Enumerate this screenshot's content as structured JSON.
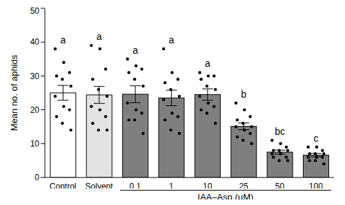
{
  "chart_data": {
    "type": "bar",
    "y_label": "Mean no. of aphids",
    "categories": [
      "Control",
      "Solvent",
      "0.1",
      "1",
      "10",
      "25",
      "50",
      "100"
    ],
    "values": [
      25.0,
      24.4,
      24.6,
      23.5,
      24.5,
      15.1,
      7.5,
      6.6
    ],
    "errors": [
      2.2,
      2.5,
      2.5,
      2.3,
      1.7,
      1.0,
      0.6,
      0.5
    ],
    "points": [
      [
        38,
        34,
        31,
        30,
        29,
        27,
        24,
        21,
        20,
        18,
        16,
        14
      ],
      [
        39,
        38,
        32,
        29,
        26,
        24,
        21,
        20,
        18,
        16,
        14,
        14
      ],
      [
        35,
        33,
        32,
        31,
        29,
        27,
        22,
        20,
        19,
        17,
        17,
        13
      ],
      [
        38,
        31,
        29,
        28,
        26,
        24,
        23,
        19,
        18,
        17,
        14,
        13
      ],
      [
        31,
        30,
        30,
        29,
        27,
        26,
        24,
        22,
        21,
        20,
        19,
        16
      ],
      [
        22,
        20,
        18,
        17,
        16,
        15,
        15,
        14,
        13,
        12,
        11,
        10
      ],
      [
        11,
        10,
        9,
        8,
        8,
        8,
        7,
        7,
        6,
        6,
        5,
        5
      ],
      [
        9,
        9,
        8,
        7,
        7,
        7,
        6,
        6,
        6,
        5,
        5,
        4
      ]
    ],
    "letters": [
      "a",
      "a",
      "a",
      "a",
      "a",
      "b",
      "bc",
      "c"
    ],
    "colors": [
      "#ffffff",
      "#e3e3e3",
      "#7f7f7f",
      "#7f7f7f",
      "#7f7f7f",
      "#7f7f7f",
      "#7f7f7f",
      "#7f7f7f"
    ],
    "category_groups": [
      {
        "label": "IAA–Asp (μM)",
        "from": "0.1",
        "to": "100"
      }
    ],
    "ylim": [
      0,
      50
    ],
    "yticks": [
      0,
      10,
      20,
      30,
      40,
      50
    ],
    "grid": false
  }
}
